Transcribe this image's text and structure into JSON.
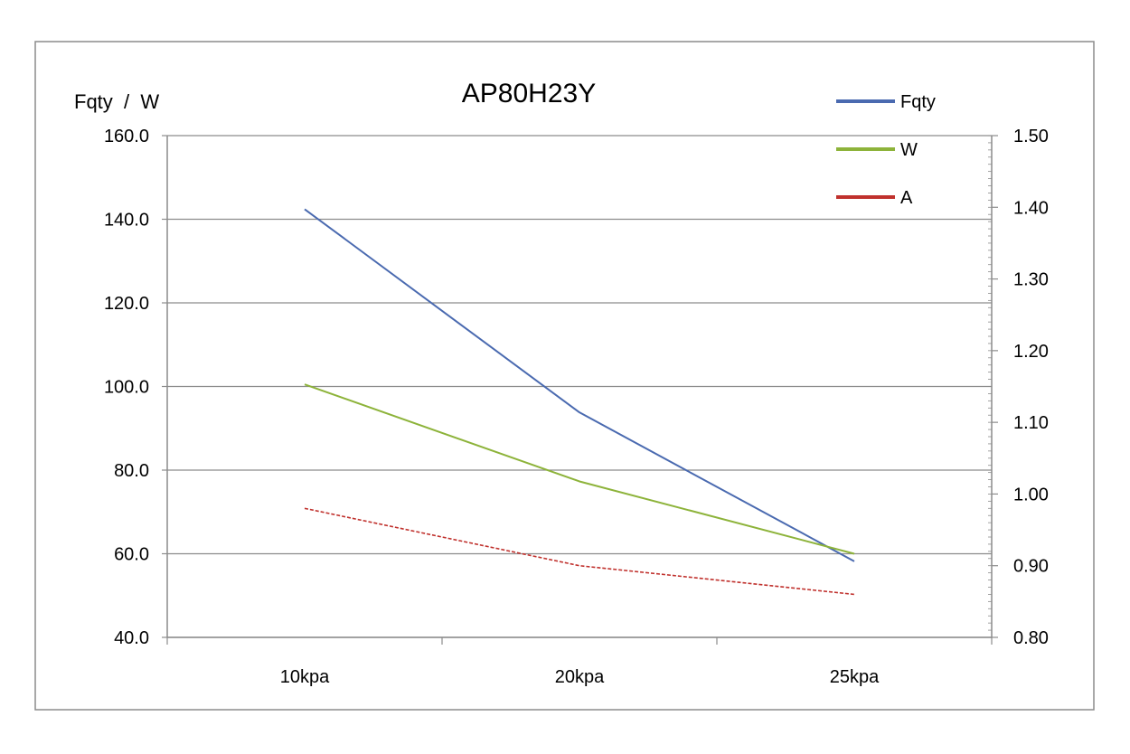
{
  "chart_data": {
    "type": "line",
    "title": "AP80H23Y",
    "ylabel": "Fqty  /  W",
    "y2label": "",
    "categories": [
      "10kpa",
      "20kpa",
      "25kpa"
    ],
    "ylim": [
      40,
      160
    ],
    "y2lim": [
      0.8,
      1.5
    ],
    "y_ticks": [
      "40.0",
      "60.0",
      "80.0",
      "100.0",
      "120.0",
      "140.0",
      "160.0"
    ],
    "y2_ticks": [
      "0.80",
      "0.90",
      "1.00",
      "1.10",
      "1.20",
      "1.30",
      "1.40",
      "1.50"
    ],
    "grid": true,
    "legend_position": "top-right",
    "series": [
      {
        "name": "Fqty",
        "axis": "left",
        "values": [
          142.4,
          93.8,
          58.2
        ],
        "color": "#4a6ab0",
        "dashed": false
      },
      {
        "name": "W",
        "axis": "left",
        "values": [
          100.5,
          77.3,
          60.0
        ],
        "color": "#8db33a",
        "dashed": false
      },
      {
        "name": "A",
        "axis": "right",
        "values": [
          0.98,
          0.9,
          0.86
        ],
        "color": "#c0312d",
        "dashed": true
      }
    ]
  }
}
